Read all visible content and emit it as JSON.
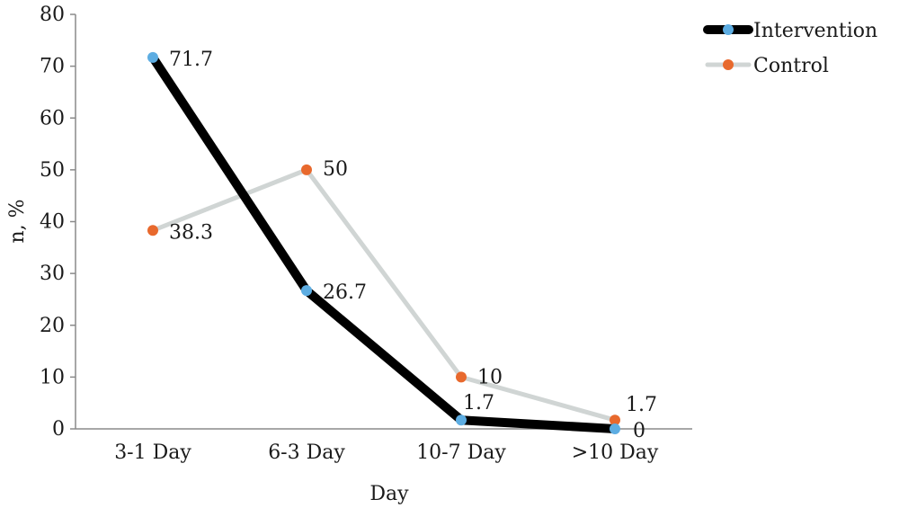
{
  "chart_data": {
    "type": "line",
    "categories": [
      "3-1 Day",
      "6-3 Day",
      "10-7 Day",
      ">10 Day"
    ],
    "series": [
      {
        "name": "Intervention",
        "values": [
          71.7,
          26.7,
          1.7,
          0
        ],
        "labels": [
          "71.7",
          "26.7",
          "1.7",
          "0"
        ],
        "line_color": "#000000",
        "marker_color": "#5dade2"
      },
      {
        "name": "Control",
        "values": [
          38.3,
          50,
          10,
          1.7
        ],
        "labels": [
          "38.3",
          "50",
          "10",
          "1.7"
        ],
        "line_color": "#d0d5d4",
        "marker_color": "#e8692d"
      }
    ],
    "xlabel": "Day",
    "ylabel": "n, %",
    "ylim": [
      0,
      80
    ],
    "yticks": [
      "0",
      "10",
      "20",
      "30",
      "40",
      "50",
      "60",
      "70",
      "80"
    ],
    "grid": false,
    "legend_position": "top-right"
  }
}
